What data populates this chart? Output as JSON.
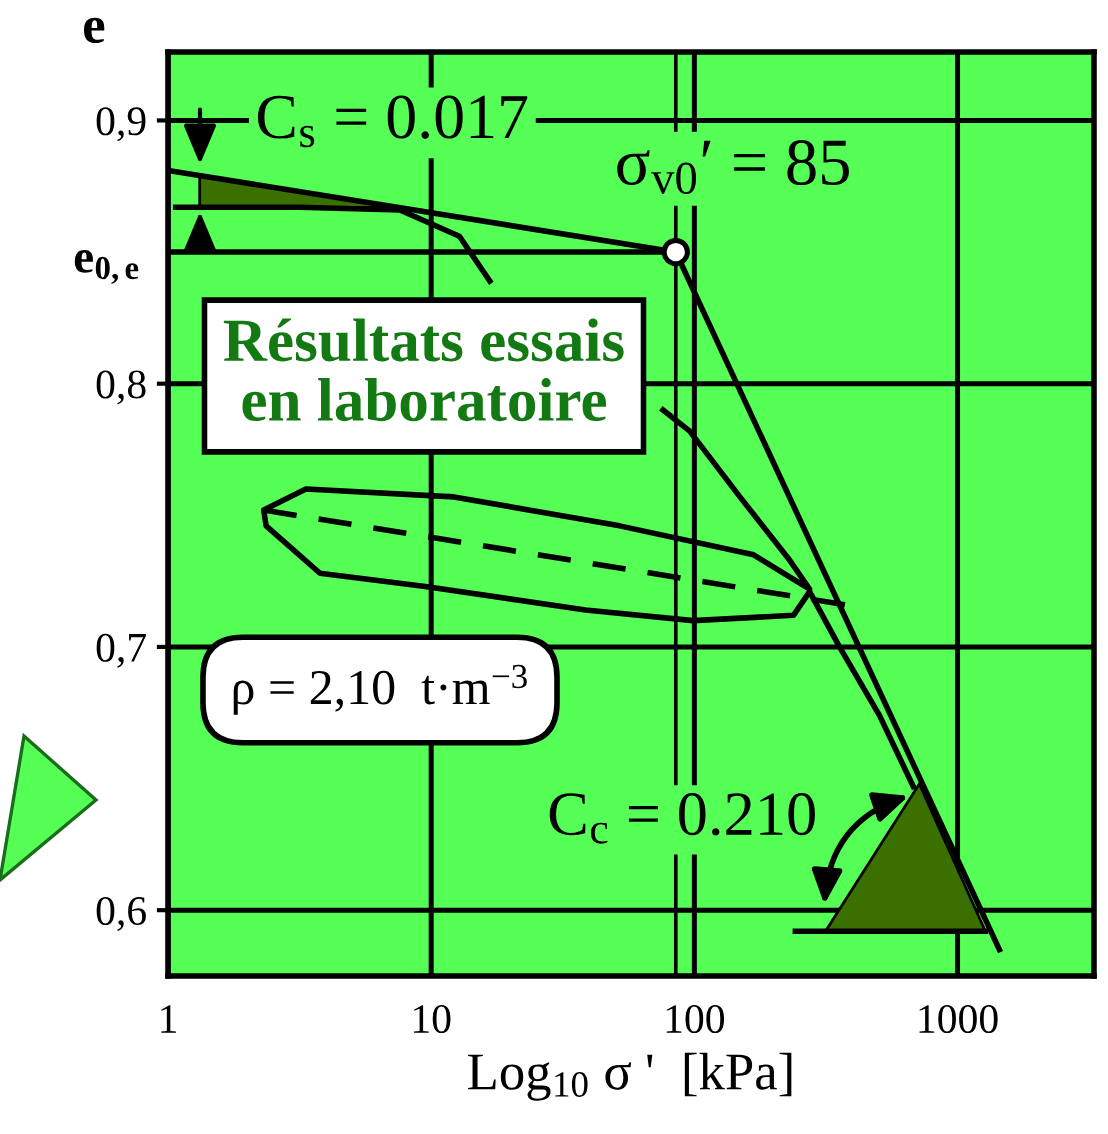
{
  "chart_data": {
    "type": "line",
    "xlabel": "Log$_{10}$ σ '  [kPa]",
    "ylabel": "e",
    "log": "x",
    "xlim": [
      1,
      3300
    ],
    "ylim": [
      0.575,
      0.926
    ],
    "xticks": [
      1,
      10,
      100,
      1000
    ],
    "yticks": [
      {
        "value": 0.6,
        "label": "0,6"
      },
      {
        "value": 0.7,
        "label": "0,7"
      },
      {
        "value": 0.8,
        "label": "0,8"
      },
      {
        "value": 0.9,
        "label": "0,9"
      }
    ],
    "grid": true,
    "series": [
      {
        "color": "#000000",
        "x": [
          1.07,
          3.17,
          7.6,
          12.8,
          16.7,
          36.7,
          76,
          96,
          149,
          230,
          274,
          168,
          52,
          12.2,
          3.34,
          2.31,
          2.36,
          3.78,
          9.5,
          38.6,
          99,
          238,
          274,
          356,
          505,
          679
        ],
        "values": [
          0.867,
          0.867,
          0.866,
          0.856,
          0.839,
          null,
          0.79,
          0.782,
          0.757,
          0.733,
          0.722,
          0.735,
          0.746,
          0.757,
          0.76,
          0.752,
          0.746,
          0.728,
          0.723,
          0.714,
          0.71,
          0.712,
          0.721,
          0.7,
          0.674,
          0.647
        ]
      },
      {
        "color": "#000000",
        "x": [
          1,
          85
        ],
        "values": [
          0.881,
          0.85
        ]
      },
      {
        "color": "#000000",
        "x": [
          85,
          1442
        ],
        "values": [
          0.85,
          0.585
        ]
      },
      {
        "color": "#000000",
        "line_style": "dashed",
        "x": [
          2.31,
          375
        ],
        "values": [
          0.752,
          0.716
        ]
      },
      {
        "color": "#000000",
        "x": [
          1,
          85
        ],
        "values": [
          0.85,
          0.85
        ]
      },
      {
        "type": "area",
        "color": "#3a7000",
        "x": [
          1.32,
          7.6,
          1.32
        ],
        "values": [
          0.879,
          0.867,
          0.867
        ]
      },
      {
        "type": "area",
        "color": "#3a7000",
        "x": [
          315,
          716,
          1276
        ],
        "values": [
          0.592,
          0.648,
          0.592
        ]
      },
      {
        "color": "#000000",
        "x": [
          242,
          1276
        ],
        "values": [
          0.592,
          0.592
        ]
      },
      {
        "type": "scatter",
        "color": "#ffffff",
        "marker": "circle",
        "x": [
          85
        ],
        "values": [
          0.85
        ]
      }
    ],
    "ref_lines": [
      {
        "axis": "x",
        "value": 85
      }
    ],
    "annotations": [
      {
        "text": "C$_{s}$ = 0.017",
        "x": 1.32,
        "y": 0.879
      },
      {
        "text": "σ$_{v0}$′ = 85",
        "x": 85,
        "y": 0.85
      },
      {
        "text": "C$_{c}$ = 0.210",
        "x": 716,
        "y": 0.648
      },
      "Résultats essais\nen laboratoire",
      "ρ = 2,10  t·m$^{−3}$",
      {
        "text": "e$_{0,e}$",
        "x": 1,
        "y": 0.85
      }
    ]
  }
}
